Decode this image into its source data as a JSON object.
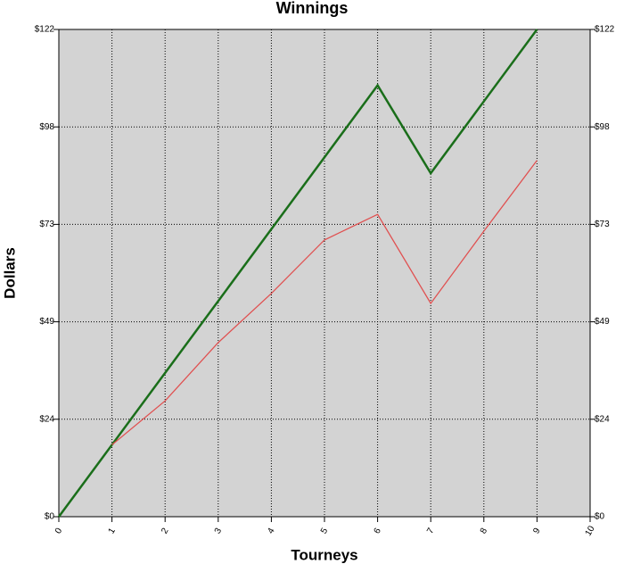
{
  "chart_data": {
    "type": "line",
    "title": "Winnings",
    "xlabel": "Tourneys",
    "ylabel": "Dollars",
    "x": [
      0,
      1,
      2,
      3,
      4,
      5,
      6,
      7,
      8,
      9
    ],
    "series": [
      {
        "color": "#1a6e1a",
        "values": [
          0,
          18,
          36,
          54,
          72,
          90,
          108,
          86,
          104,
          122
        ]
      },
      {
        "color": "#e05050",
        "values": [
          null,
          18,
          29,
          43.6,
          55.9,
          69.3,
          75.7,
          53.4,
          71.5,
          89.2
        ]
      }
    ],
    "xlim": [
      0,
      10
    ],
    "xticks": [
      0,
      1,
      2,
      3,
      4,
      5,
      6,
      7,
      8,
      9,
      10
    ],
    "ylim": [
      0,
      122
    ],
    "yticks": [
      {
        "value": 0,
        "label": "$0"
      },
      {
        "value": 24.4,
        "label": "$24"
      },
      {
        "value": 48.8,
        "label": "$49"
      },
      {
        "value": 73.2,
        "label": "$73"
      },
      {
        "value": 97.6,
        "label": "$98"
      },
      {
        "value": 122,
        "label": "$122"
      }
    ],
    "grid": true,
    "plot_background": "#d3d3d3"
  }
}
